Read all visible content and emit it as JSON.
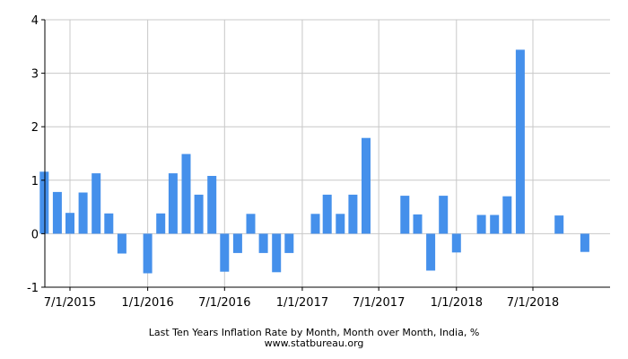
{
  "chart_data": {
    "type": "bar",
    "title": "Last Ten Years Inflation Rate by Month, Month over Month, India, %",
    "source": "www.statbureau.org",
    "xlabel": "",
    "ylabel": "",
    "ylim": [
      -1,
      4
    ],
    "y_ticks": [
      -1,
      0,
      1,
      2,
      3,
      4
    ],
    "x_ticks": [
      {
        "label": "7/1/2015",
        "date": "2015-07-01"
      },
      {
        "label": "1/1/2016",
        "date": "2016-01-01"
      },
      {
        "label": "7/1/2016",
        "date": "2016-07-01"
      },
      {
        "label": "1/1/2017",
        "date": "2017-01-01"
      },
      {
        "label": "7/1/2017",
        "date": "2017-07-01"
      },
      {
        "label": "1/1/2018",
        "date": "2018-01-01"
      },
      {
        "label": "7/1/2018",
        "date": "2018-07-01"
      }
    ],
    "grid": true,
    "bar_color": "#4590eb",
    "series": [
      {
        "x": [
          "2015-05",
          "2015-06",
          "2015-07",
          "2015-08",
          "2015-09",
          "2015-10",
          "2015-11",
          "2015-12",
          "2016-01",
          "2016-02",
          "2016-03",
          "2016-04",
          "2016-05",
          "2016-06",
          "2016-07",
          "2016-08",
          "2016-09",
          "2016-10",
          "2016-11",
          "2016-12",
          "2017-01",
          "2017-02",
          "2017-03",
          "2017-04",
          "2017-05",
          "2017-06",
          "2017-07",
          "2017-08",
          "2017-09",
          "2017-10",
          "2017-11",
          "2017-12",
          "2018-01",
          "2018-02",
          "2018-03",
          "2018-04",
          "2018-05",
          "2018-06",
          "2018-07",
          "2018-08",
          "2018-09",
          "2018-10",
          "2018-11"
        ],
        "values": [
          1.16,
          0.78,
          0.39,
          0.77,
          1.13,
          0.38,
          -0.37,
          0,
          -0.74,
          0.38,
          1.13,
          1.49,
          0.73,
          1.08,
          -0.71,
          -0.36,
          0.37,
          -0.36,
          -0.72,
          -0.36,
          0,
          0.37,
          0.73,
          0.37,
          0.73,
          1.79,
          0,
          0,
          0.71,
          0.36,
          -0.69,
          0.71,
          -0.35,
          0,
          0.35,
          0.35,
          0.7,
          3.44,
          0,
          0,
          0.34,
          0,
          -0.34
        ]
      }
    ]
  }
}
